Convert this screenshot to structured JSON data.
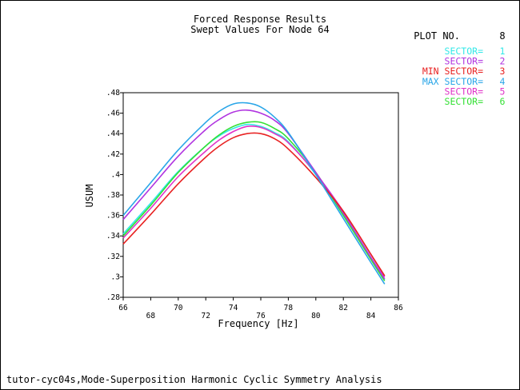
{
  "chart_data": {
    "type": "line",
    "title": [
      "Forced Response Results",
      "Swept Values For Node 64"
    ],
    "xlabel": "Frequency [Hz]",
    "ylabel": "USUM",
    "xlim": [
      66,
      86
    ],
    "ylim": [
      0.28,
      0.48
    ],
    "xticks": [
      66,
      68,
      70,
      72,
      74,
      76,
      78,
      80,
      82,
      84,
      86
    ],
    "xtick_labels": [
      "66",
      "68",
      "70",
      "72",
      "74",
      "76",
      "78",
      "80",
      "82",
      "84",
      "86"
    ],
    "yticks": [
      0.28,
      0.3,
      0.32,
      0.34,
      0.36,
      0.38,
      0.4,
      0.42,
      0.44,
      0.46,
      0.48
    ],
    "ytick_labels": [
      ".28",
      ".3",
      ".32",
      ".34",
      ".36",
      ".38",
      ".4",
      ".42",
      ".44",
      ".46",
      ".48"
    ],
    "grid": false,
    "legend_position": "top-right",
    "plot_label": "PLOT NO.",
    "plot_number": "8",
    "x": [
      66,
      68,
      70,
      72,
      73,
      74,
      75,
      76,
      77,
      78,
      80,
      82,
      84,
      85
    ],
    "series": [
      {
        "name": "SECTOR=",
        "value_label": "1",
        "color": "#33e8e8",
        "values": [
          0.342,
          0.372,
          0.403,
          0.428,
          0.438,
          0.445,
          0.449,
          0.447,
          0.441,
          0.432,
          0.4,
          0.36,
          0.318,
          0.297
        ]
      },
      {
        "name": "SECTOR=",
        "value_label": "2",
        "color": "#b033e0",
        "values": [
          0.356,
          0.387,
          0.418,
          0.444,
          0.454,
          0.461,
          0.463,
          0.46,
          0.453,
          0.44,
          0.402,
          0.362,
          0.319,
          0.298
        ]
      },
      {
        "name": "MIN SECTOR=",
        "value_label": "3",
        "color": "#e82222",
        "values": [
          0.332,
          0.361,
          0.391,
          0.417,
          0.428,
          0.436,
          0.44,
          0.44,
          0.435,
          0.425,
          0.397,
          0.364,
          0.322,
          0.301
        ]
      },
      {
        "name": "MAX SECTOR=",
        "value_label": "4",
        "color": "#2aa6e8",
        "values": [
          0.36,
          0.392,
          0.424,
          0.451,
          0.462,
          0.469,
          0.47,
          0.466,
          0.456,
          0.441,
          0.4,
          0.357,
          0.314,
          0.293
        ]
      },
      {
        "name": "SECTOR=",
        "value_label": "5",
        "color": "#e033c8",
        "values": [
          0.338,
          0.367,
          0.398,
          0.423,
          0.434,
          0.442,
          0.447,
          0.446,
          0.44,
          0.431,
          0.401,
          0.364,
          0.322,
          0.3
        ]
      },
      {
        "name": "SECTOR=",
        "value_label": "6",
        "color": "#33e033",
        "values": [
          0.34,
          0.37,
          0.402,
          0.428,
          0.439,
          0.447,
          0.451,
          0.451,
          0.445,
          0.435,
          0.402,
          0.36,
          0.317,
          0.296
        ]
      }
    ]
  },
  "footer": "tutor-cyc04s,Mode-Superposition Harmonic Cyclic Symmetry Analysis"
}
